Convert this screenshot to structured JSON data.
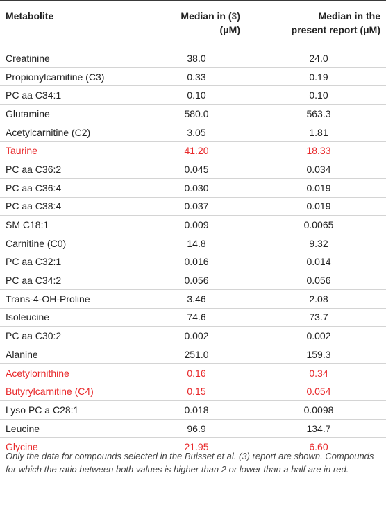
{
  "header": {
    "col1": "Metabolite",
    "col2_line1_pre": "Median in (",
    "col2_ref": "3",
    "col2_line1_post": ")",
    "col2_line2": "(μM)",
    "col3_line1": "Median in the",
    "col3_line2": "present report (μM)"
  },
  "rows": [
    {
      "name": "Creatinine",
      "a": "38.0",
      "b": "24.0",
      "red": false
    },
    {
      "name": "Propionylcarnitine (C3)",
      "a": "0.33",
      "b": "0.19",
      "red": false
    },
    {
      "name": "PC aa C34:1",
      "a": "0.10",
      "b": "0.10",
      "red": false
    },
    {
      "name": "Glutamine",
      "a": "580.0",
      "b": "563.3",
      "red": false
    },
    {
      "name": "Acetylcarnitine (C2)",
      "a": "3.05",
      "b": "1.81",
      "red": false
    },
    {
      "name": "Taurine",
      "a": "41.20",
      "b": "18.33",
      "red": true
    },
    {
      "name": "PC aa C36:2",
      "a": "0.045",
      "b": "0.034",
      "red": false
    },
    {
      "name": "PC aa C36:4",
      "a": "0.030",
      "b": "0.019",
      "red": false
    },
    {
      "name": "PC aa C38:4",
      "a": "0.037",
      "b": "0.019",
      "red": false
    },
    {
      "name": "SM C18:1",
      "a": "0.009",
      "b": "0.0065",
      "red": false
    },
    {
      "name": "Carnitine (C0)",
      "a": "14.8",
      "b": "9.32",
      "red": false
    },
    {
      "name": "PC aa C32:1",
      "a": "0.016",
      "b": "0.014",
      "red": false
    },
    {
      "name": "PC aa C34:2",
      "a": "0.056",
      "b": "0.056",
      "red": false
    },
    {
      "name": "Trans-4-OH-Proline",
      "a": "3.46",
      "b": "2.08",
      "red": false
    },
    {
      "name": "Isoleucine",
      "a": "74.6",
      "b": "73.7",
      "red": false
    },
    {
      "name": "PC aa C30:2",
      "a": "0.002",
      "b": "0.002",
      "red": false
    },
    {
      "name": "Alanine",
      "a": "251.0",
      "b": "159.3",
      "red": false
    },
    {
      "name": "Acetylornithine",
      "a": "0.16",
      "b": "0.34",
      "red": true
    },
    {
      "name": "Butyrylcarnitine (C4)",
      "a": "0.15",
      "b": "0.054",
      "red": true
    },
    {
      "name": "Lyso PC a C28:1",
      "a": "0.018",
      "b": "0.0098",
      "red": false
    },
    {
      "name": "Leucine",
      "a": "96.9",
      "b": "134.7",
      "red": false
    },
    {
      "name": "Glycine",
      "a": "21.95",
      "b": "6.60",
      "red": true
    }
  ],
  "footnote": {
    "pre": "Only the data for compounds selected in the Buisset et al. (",
    "ref": "3",
    "post": ") report are shown. Compounds for which the ratio between both values is higher than 2 or lower than a half are in red."
  },
  "colors": {
    "highlight": "#e8282a",
    "text": "#222222",
    "rule": "#3a3a3a"
  }
}
